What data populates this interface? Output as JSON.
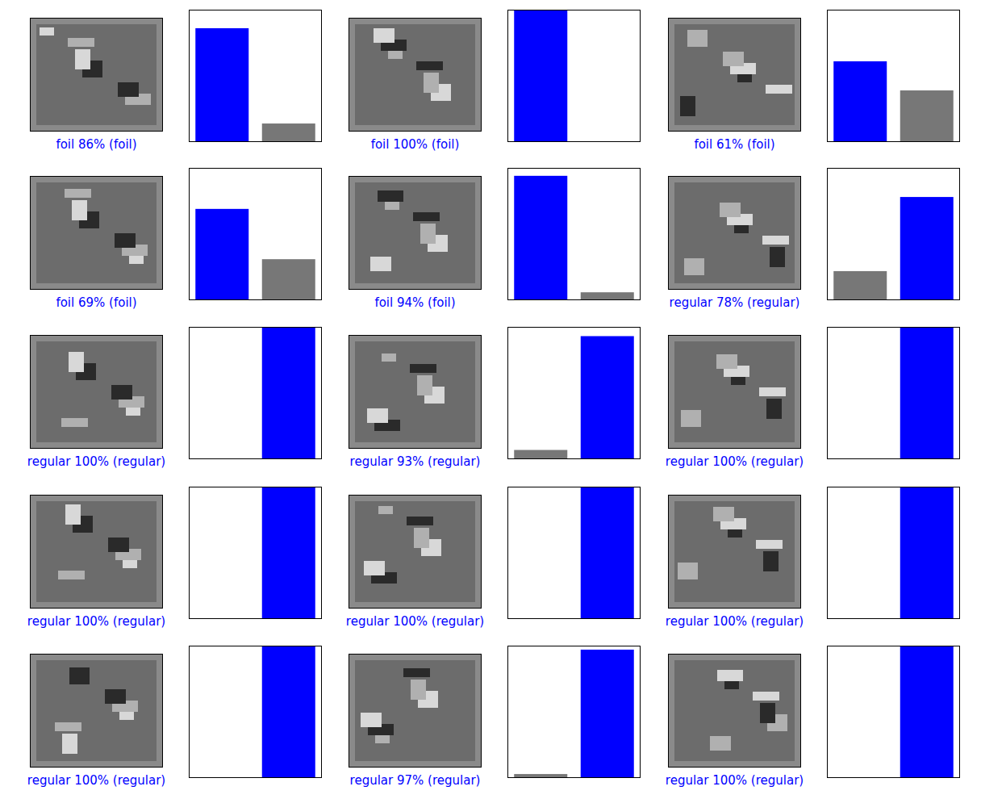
{
  "chart_data": [
    {
      "type": "bar",
      "title": "foil 86% (foil)",
      "categories": [
        null,
        null
      ],
      "values": [
        86,
        14
      ],
      "colors": [
        "#0000ff",
        "#777777"
      ],
      "ylim": [
        0,
        100
      ],
      "tick_labels": false
    },
    {
      "type": "bar",
      "title": "foil 100% (foil)",
      "categories": [
        null,
        null
      ],
      "values": [
        100,
        0
      ],
      "colors": [
        "#0000ff",
        "#777777"
      ],
      "ylim": [
        0,
        100
      ],
      "tick_labels": false
    },
    {
      "type": "bar",
      "title": "foil 61% (foil)",
      "categories": [
        null,
        null
      ],
      "values": [
        61,
        39
      ],
      "colors": [
        "#0000ff",
        "#777777"
      ],
      "ylim": [
        0,
        100
      ],
      "tick_labels": false
    },
    {
      "type": "bar",
      "title": "foil 69% (foil)",
      "categories": [
        null,
        null
      ],
      "values": [
        69,
        31
      ],
      "colors": [
        "#0000ff",
        "#777777"
      ],
      "ylim": [
        0,
        100
      ],
      "tick_labels": false
    },
    {
      "type": "bar",
      "title": "foil 94% (foil)",
      "categories": [
        null,
        null
      ],
      "values": [
        94,
        6
      ],
      "colors": [
        "#0000ff",
        "#777777"
      ],
      "ylim": [
        0,
        100
      ],
      "tick_labels": false
    },
    {
      "type": "bar",
      "title": "regular 78% (regular)",
      "categories": [
        null,
        null
      ],
      "values": [
        22,
        78
      ],
      "colors": [
        "#777777",
        "#0000ff"
      ],
      "ylim": [
        0,
        100
      ],
      "tick_labels": false
    },
    {
      "type": "bar",
      "title": "regular 100% (regular)",
      "categories": [
        null,
        null
      ],
      "values": [
        0,
        100
      ],
      "colors": [
        "#777777",
        "#0000ff"
      ],
      "ylim": [
        0,
        100
      ],
      "tick_labels": false
    },
    {
      "type": "bar",
      "title": "regular 93% (regular)",
      "categories": [
        null,
        null
      ],
      "values": [
        7,
        93
      ],
      "colors": [
        "#777777",
        "#0000ff"
      ],
      "ylim": [
        0,
        100
      ],
      "tick_labels": false
    },
    {
      "type": "bar",
      "title": "regular 100% (regular)",
      "categories": [
        null,
        null
      ],
      "values": [
        0,
        100
      ],
      "colors": [
        "#777777",
        "#0000ff"
      ],
      "ylim": [
        0,
        100
      ],
      "tick_labels": false
    },
    {
      "type": "bar",
      "title": "regular 100% (regular)",
      "categories": [
        null,
        null
      ],
      "values": [
        0,
        100
      ],
      "colors": [
        "#777777",
        "#0000ff"
      ],
      "ylim": [
        0,
        100
      ],
      "tick_labels": false
    },
    {
      "type": "bar",
      "title": "regular 100% (regular)",
      "categories": [
        null,
        null
      ],
      "values": [
        0,
        100
      ],
      "colors": [
        "#777777",
        "#0000ff"
      ],
      "ylim": [
        0,
        100
      ],
      "tick_labels": false
    },
    {
      "type": "bar",
      "title": "regular 100% (regular)",
      "categories": [
        null,
        null
      ],
      "values": [
        0,
        100
      ],
      "colors": [
        "#777777",
        "#0000ff"
      ],
      "ylim": [
        0,
        100
      ],
      "tick_labels": false
    },
    {
      "type": "bar",
      "title": "regular 100% (regular)",
      "categories": [
        null,
        null
      ],
      "values": [
        0,
        100
      ],
      "colors": [
        "#777777",
        "#0000ff"
      ],
      "ylim": [
        0,
        100
      ],
      "tick_labels": false
    },
    {
      "type": "bar",
      "title": "regular 97% (regular)",
      "categories": [
        null,
        null
      ],
      "values": [
        3,
        97
      ],
      "colors": [
        "#777777",
        "#0000ff"
      ],
      "ylim": [
        0,
        100
      ],
      "tick_labels": false
    },
    {
      "type": "bar",
      "title": "regular 100% (regular)",
      "categories": [
        null,
        null
      ],
      "values": [
        0,
        100
      ],
      "colors": [
        "#777777",
        "#0000ff"
      ],
      "ylim": [
        0,
        100
      ],
      "tick_labels": false
    }
  ]
}
